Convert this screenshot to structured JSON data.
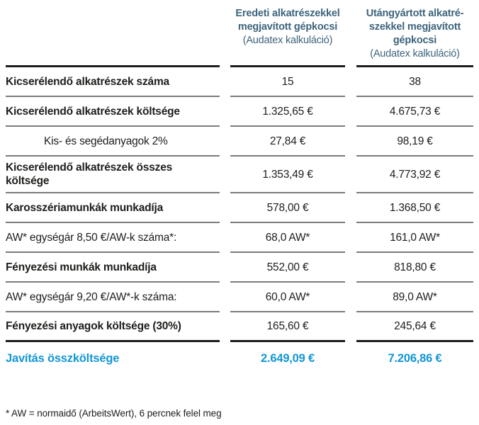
{
  "colors": {
    "header_text": "#3d647c",
    "total_text": "#1197d6",
    "body_text": "#1d1d1b",
    "row_separator": "#7b7b7b",
    "heavy_line": "#1d1d1b"
  },
  "table": {
    "columns": [
      {
        "title": "Eredeti alkatrészekkel\nmegjavított gépkocsi",
        "subtitle": "(Audatex kalkuláció)"
      },
      {
        "title": "Utángyártott alkatré-\nszekkel megjavított\ngépkocsi",
        "subtitle": "(Audatex kalkuláció)"
      }
    ],
    "rows": [
      {
        "label": "Kicserélendő alkatrészek száma",
        "original": "15",
        "aftermarket": "38"
      },
      {
        "label": "Kicserélendő alkatrészek költsége",
        "original": "1.325,65 €",
        "aftermarket": "4.675,73 €"
      },
      {
        "label": "Kis- és segédanyagok 2%",
        "original": "27,84 €",
        "aftermarket": "98,19 €"
      },
      {
        "label": "Kicserélendő alkatrészek összes\nköltsége",
        "original": "1.353,49 €",
        "aftermarket": "4.773,92 €"
      },
      {
        "label": "Karosszériamunkák munkadíja",
        "original": "578,00 €",
        "aftermarket": "1.368,50 €"
      },
      {
        "label": "AW* egységár 8,50 €/AW-k száma*:",
        "original": "68,0 AW*",
        "aftermarket": "161,0 AW*"
      },
      {
        "label": "Fényezési munkák munkadíja",
        "original": "552,00 €",
        "aftermarket": "818,80 €"
      },
      {
        "label": "AW* egységár 9,20 €/AW*-k száma:",
        "original": "60,0 AW*",
        "aftermarket": "89,0 AW*"
      },
      {
        "label": "Fényezési anyagok költsége (30%)",
        "original": "165,60 €",
        "aftermarket": "245,64 €"
      }
    ],
    "total": {
      "label": "Javítás összköltsége",
      "original": "2.649,09 €",
      "aftermarket": "7.206,86 €"
    }
  },
  "footnote": "* AW = normaidő (ArbeitsWert), 6 percnek felel meg"
}
